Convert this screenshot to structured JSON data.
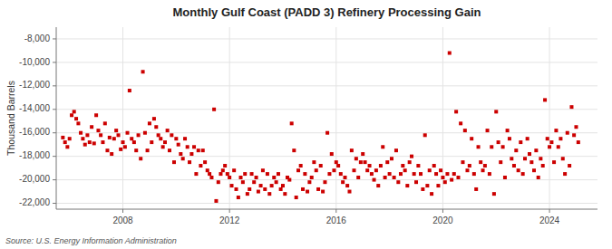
{
  "chart_data": {
    "type": "scatter",
    "title": "Monthly Gulf Coast (PADD 3) Refinery Processing Gain",
    "y_label": "Thousand Barrels",
    "source": "Source: U.S. Energy Information Administration",
    "color": "#cc0000",
    "marker": "square",
    "grid": true,
    "xlim": [
      2005.5,
      2025.8
    ],
    "xticks": [
      2008,
      2012,
      2016,
      2020,
      2024
    ],
    "ylim": [
      -22500,
      -7000
    ],
    "yticks": [
      {
        "value": -22000,
        "label": "-22,000"
      },
      {
        "value": -20000,
        "label": "-20,000"
      },
      {
        "value": -18000,
        "label": "-18,000"
      },
      {
        "value": -16000,
        "label": "-16,000"
      },
      {
        "value": -14000,
        "label": "-14,000"
      },
      {
        "value": -12000,
        "label": "-12,000"
      },
      {
        "value": -10000,
        "label": "-10,000"
      },
      {
        "value": -8000,
        "label": "-8,000"
      }
    ],
    "x": [
      2005.75,
      2005.83,
      2005.92,
      2006.0,
      2006.08,
      2006.17,
      2006.25,
      2006.33,
      2006.42,
      2006.5,
      2006.58,
      2006.67,
      2006.75,
      2006.83,
      2006.92,
      2007.0,
      2007.08,
      2007.17,
      2007.25,
      2007.33,
      2007.42,
      2007.5,
      2007.58,
      2007.67,
      2007.75,
      2007.83,
      2007.92,
      2008.0,
      2008.08,
      2008.17,
      2008.25,
      2008.33,
      2008.42,
      2008.5,
      2008.58,
      2008.67,
      2008.75,
      2008.83,
      2008.92,
      2009.0,
      2009.08,
      2009.17,
      2009.25,
      2009.33,
      2009.42,
      2009.5,
      2009.58,
      2009.67,
      2009.75,
      2009.83,
      2009.92,
      2010.0,
      2010.08,
      2010.17,
      2010.25,
      2010.33,
      2010.42,
      2010.5,
      2010.58,
      2010.67,
      2010.75,
      2010.83,
      2010.92,
      2011.0,
      2011.08,
      2011.17,
      2011.25,
      2011.33,
      2011.42,
      2011.5,
      2011.58,
      2011.67,
      2011.75,
      2011.83,
      2011.92,
      2012.0,
      2012.08,
      2012.17,
      2012.25,
      2012.33,
      2012.42,
      2012.5,
      2012.58,
      2012.67,
      2012.75,
      2012.83,
      2012.92,
      2013.0,
      2013.08,
      2013.17,
      2013.25,
      2013.33,
      2013.42,
      2013.5,
      2013.58,
      2013.67,
      2013.75,
      2013.83,
      2013.92,
      2014.0,
      2014.08,
      2014.17,
      2014.25,
      2014.33,
      2014.42,
      2014.5,
      2014.58,
      2014.67,
      2014.75,
      2014.83,
      2014.92,
      2015.0,
      2015.08,
      2015.17,
      2015.25,
      2015.33,
      2015.42,
      2015.5,
      2015.58,
      2015.67,
      2015.75,
      2015.83,
      2015.92,
      2016.0,
      2016.08,
      2016.17,
      2016.25,
      2016.33,
      2016.42,
      2016.5,
      2016.58,
      2016.67,
      2016.75,
      2016.83,
      2016.92,
      2017.0,
      2017.08,
      2017.17,
      2017.25,
      2017.33,
      2017.42,
      2017.5,
      2017.58,
      2017.67,
      2017.75,
      2017.83,
      2017.92,
      2018.0,
      2018.08,
      2018.17,
      2018.25,
      2018.33,
      2018.42,
      2018.5,
      2018.58,
      2018.67,
      2018.75,
      2018.83,
      2018.92,
      2019.0,
      2019.08,
      2019.17,
      2019.25,
      2019.33,
      2019.42,
      2019.5,
      2019.58,
      2019.67,
      2019.75,
      2019.83,
      2019.92,
      2020.0,
      2020.08,
      2020.17,
      2020.25,
      2020.33,
      2020.42,
      2020.5,
      2020.58,
      2020.67,
      2020.75,
      2020.83,
      2020.92,
      2021.0,
      2021.08,
      2021.17,
      2021.25,
      2021.33,
      2021.42,
      2021.5,
      2021.58,
      2021.67,
      2021.75,
      2021.83,
      2021.92,
      2022.0,
      2022.08,
      2022.17,
      2022.25,
      2022.33,
      2022.42,
      2022.5,
      2022.58,
      2022.67,
      2022.75,
      2022.83,
      2022.92,
      2023.0,
      2023.08,
      2023.17,
      2023.25,
      2023.33,
      2023.42,
      2023.5,
      2023.58,
      2023.67,
      2023.75,
      2023.83,
      2023.92,
      2024.0,
      2024.08,
      2024.17,
      2024.25,
      2024.33,
      2024.42,
      2024.5,
      2024.58,
      2024.67,
      2024.75,
      2024.83,
      2024.92,
      2025.0,
      2025.08
    ],
    "values": [
      -16400,
      -16800,
      -17200,
      -16500,
      -14500,
      -14200,
      -14800,
      -15200,
      -16000,
      -16500,
      -17000,
      -16200,
      -16800,
      -15500,
      -16900,
      -14500,
      -15800,
      -16200,
      -16800,
      -15200,
      -17500,
      -16400,
      -17800,
      -16500,
      -15800,
      -16200,
      -17400,
      -16800,
      -17200,
      -16000,
      -12400,
      -16500,
      -16800,
      -17500,
      -16200,
      -18200,
      -10800,
      -16000,
      -17500,
      -15200,
      -16800,
      -14800,
      -15500,
      -16200,
      -16500,
      -17200,
      -16800,
      -15800,
      -17500,
      -16200,
      -18500,
      -16500,
      -17000,
      -17800,
      -18200,
      -16500,
      -17200,
      -18500,
      -17800,
      -17200,
      -19500,
      -17500,
      -18800,
      -17500,
      -18500,
      -19200,
      -19500,
      -19800,
      -14000,
      -21800,
      -20200,
      -19500,
      -19200,
      -18800,
      -19500,
      -19800,
      -20500,
      -19200,
      -20800,
      -21500,
      -19800,
      -20200,
      -19500,
      -21200,
      -20800,
      -19500,
      -20200,
      -19800,
      -21000,
      -20500,
      -19200,
      -20800,
      -19500,
      -21200,
      -20500,
      -19800,
      -20200,
      -19500,
      -20800,
      -20500,
      -21200,
      -19800,
      -20000,
      -15200,
      -17500,
      -21500,
      -19200,
      -18800,
      -20800,
      -19500,
      -21000,
      -20200,
      -19800,
      -18500,
      -19200,
      -20800,
      -18800,
      -21000,
      -20200,
      -16000,
      -19500,
      -17800,
      -19200,
      -18500,
      -18800,
      -19500,
      -20200,
      -19800,
      -20500,
      -21000,
      -17500,
      -19200,
      -18200,
      -19800,
      -18500,
      -17800,
      -18500,
      -19200,
      -18800,
      -19500,
      -20000,
      -19200,
      -20500,
      -18800,
      -17200,
      -19800,
      -18500,
      -19500,
      -18200,
      -19800,
      -17500,
      -20200,
      -19500,
      -18800,
      -19200,
      -20500,
      -18500,
      -18000,
      -19500,
      -20200,
      -18800,
      -19500,
      -20800,
      -16200,
      -20500,
      -19200,
      -21200,
      -18800,
      -19500,
      -20500,
      -19200,
      -19800,
      -20200,
      -19500,
      -9200,
      -20000,
      -19500,
      -14200,
      -19800,
      -15200,
      -18500,
      -15800,
      -19200,
      -18800,
      -16500,
      -19500,
      -20800,
      -17200,
      -18500,
      -19200,
      -18800,
      -15800,
      -19500,
      -17200,
      -21200,
      -14200,
      -16800,
      -18500,
      -17200,
      -19800,
      -15800,
      -16500,
      -18200,
      -18800,
      -17500,
      -19200,
      -16800,
      -19500,
      -18200,
      -16500,
      -17800,
      -18500,
      -19200,
      -17500,
      -19800,
      -18200,
      -18800,
      -13200,
      -16500,
      -17200,
      -16800,
      -18500,
      -15800,
      -17200,
      -16500,
      -18200,
      -19500,
      -16000,
      -18800,
      -13800,
      -16200,
      -15500,
      -16800
    ]
  }
}
